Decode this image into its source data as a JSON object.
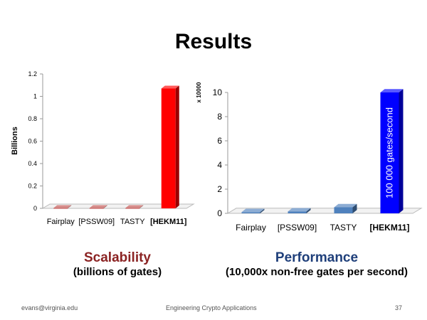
{
  "slide": {
    "title": "Results",
    "footer_left": "evans@virginia.edu",
    "footer_center": "Engineering Crypto Applications",
    "page_number": "37"
  },
  "captions": {
    "left_main": "Scalability",
    "left_sub": "(billions of gates)",
    "left_color": "#8b2323",
    "right_main": "Performance",
    "right_sub": "(10,000x non-free gates per second)",
    "right_color": "#1f3f7a"
  },
  "chart_data": [
    {
      "type": "bar",
      "categories": [
        "Fairplay",
        "[PSSW09]",
        "TASTY",
        "[HEKM11]"
      ],
      "values": [
        0.003,
        0.003,
        0.003,
        1.07
      ],
      "ylabel": "Billions",
      "ylim": [
        0,
        1.2
      ],
      "yticks": [
        "0",
        "0.2",
        "0.4",
        "0.6",
        "0.8",
        "1",
        "1.2"
      ],
      "colors": [
        "#c0504d",
        "#c0504d",
        "#c0504d",
        "#ff0000"
      ],
      "grid": false,
      "highlight_category": "[HEKM11]"
    },
    {
      "type": "bar",
      "categories": [
        "Fairplay",
        "[PSSW09]",
        "TASTY",
        "[HEKM11]"
      ],
      "values": [
        0.1,
        0.15,
        0.5,
        10
      ],
      "ylabel": "x 10000",
      "ylim": [
        0,
        10
      ],
      "yticks": [
        "0",
        "2",
        "4",
        "6",
        "8",
        "10"
      ],
      "colors": [
        "#4f81bd",
        "#4f81bd",
        "#4f81bd",
        "#0000ff"
      ],
      "bar_annotation": "100 000 gates/second",
      "grid": false,
      "highlight_category": "[HEKM11]"
    }
  ]
}
